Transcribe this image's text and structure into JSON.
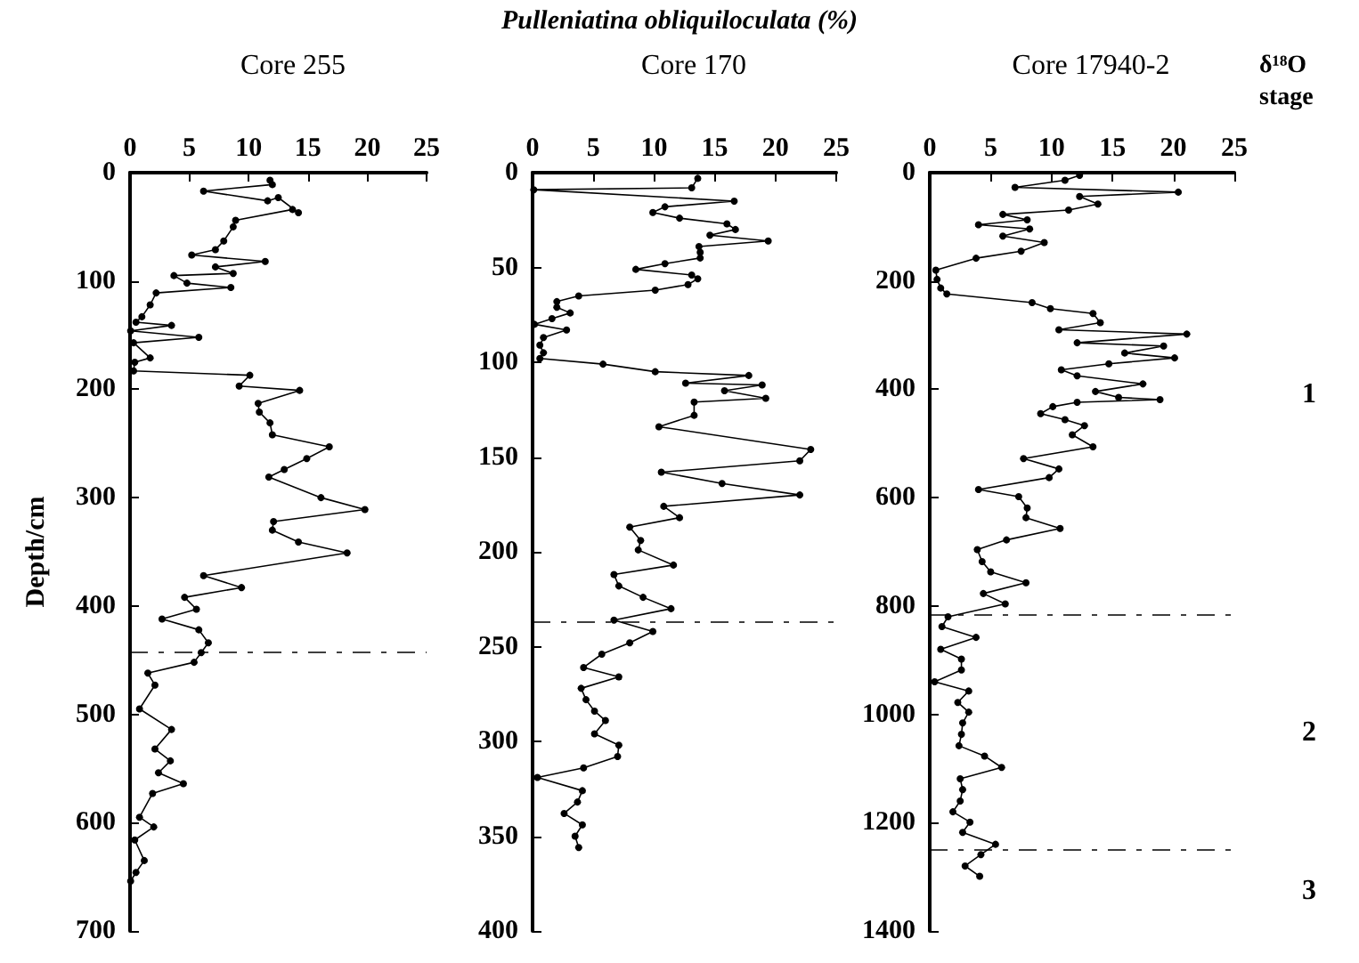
{
  "chart_data": [
    {
      "type": "line",
      "title": "Core 255",
      "ylabel": "Depth/cm",
      "annotations": [
        "Pulleniatina obliquiloculata (%)"
      ],
      "color": "#000000",
      "marker": "circle",
      "x": [
        11.8,
        12,
        6.2,
        11.6,
        12.5,
        14.2,
        13.7,
        8.9,
        8.7,
        7.9,
        7.2,
        5.2,
        11.4,
        7.2,
        8.7,
        3.7,
        4.8,
        8.5,
        2.2,
        1.7,
        1.0,
        0.5,
        3.5,
        0.05,
        5.8,
        0.3,
        1.7,
        0.4,
        0.3,
        10.1,
        9.2,
        14.3,
        10.8,
        10.9,
        11.8,
        12,
        16.8,
        14.9,
        13,
        11.7,
        16.1,
        19.8,
        12.1,
        12,
        14.2,
        18.3,
        6.2,
        9.4,
        4.6,
        5.6,
        2.7,
        5.8,
        6.6,
        6.0,
        5.4,
        1.5,
        2.1,
        0.8,
        3.5,
        2.1,
        3.4,
        2.4,
        4.5,
        1.9,
        0.8,
        2.0,
        0.4,
        1.2,
        0.5,
        0.05
      ],
      "values": [
        7,
        11,
        17,
        26,
        23,
        37,
        34,
        44,
        50,
        63,
        71,
        76,
        82,
        87,
        93,
        95,
        102,
        106,
        111,
        122,
        133,
        138,
        141,
        146,
        152,
        157,
        171,
        175,
        183,
        187,
        197,
        201,
        213,
        221,
        231,
        242,
        253,
        264,
        274,
        281,
        300,
        311,
        322,
        330,
        341,
        351,
        372,
        383,
        392,
        403,
        412,
        422,
        434,
        443,
        452,
        462,
        473,
        495,
        514,
        532,
        543,
        554,
        564,
        573,
        595,
        604,
        616,
        635,
        646,
        654
      ],
      "xlim": [
        0,
        25
      ],
      "xticks": [
        0,
        5,
        10,
        15,
        20,
        25
      ],
      "ylim": [
        700,
        0
      ],
      "yticks": [
        0,
        100,
        200,
        300,
        400,
        500,
        600,
        700
      ],
      "ref_lines": [
        {
          "axis": "y",
          "value": 442,
          "line_style": "dashed"
        }
      ]
    },
    {
      "type": "line",
      "title": "Core 170",
      "color": "#000000",
      "marker": "circle",
      "x": [
        13.6,
        13.1,
        0.1,
        16.6,
        10.9,
        9.9,
        12.1,
        16,
        16.7,
        14.6,
        19.4,
        13.7,
        13.8,
        13.8,
        10.9,
        8.5,
        13.1,
        13.6,
        12.8,
        10.1,
        3.8,
        2.0,
        2.0,
        3.1,
        1.6,
        0.15,
        2.8,
        0.9,
        0.6,
        0.9,
        0.6,
        5.8,
        10.1,
        17.8,
        12.6,
        18.9,
        15.8,
        19.2,
        13.3,
        13.3,
        10.4,
        22.9,
        22,
        10.6,
        15.6,
        22,
        10.8,
        12.1,
        8,
        8.9,
        8.7,
        11.6,
        6.7,
        7.1,
        9.1,
        11.4,
        6.7,
        9.9,
        8,
        5.7,
        4.2,
        7.1,
        4.0,
        4.4,
        5.1,
        6.0,
        5.1,
        7.1,
        7.0,
        4.2,
        0.4,
        4.1,
        3.7,
        2.6,
        4.1,
        3.5,
        3.8
      ],
      "values": [
        3,
        8,
        9,
        15,
        18,
        21,
        24,
        27,
        30,
        33,
        36,
        39,
        42,
        45,
        48,
        51,
        54,
        56,
        59,
        62,
        65,
        68,
        71,
        74,
        77,
        80,
        83,
        87,
        91,
        95,
        98,
        101,
        105,
        107,
        111,
        112,
        115,
        119,
        121,
        128,
        134,
        146,
        152,
        158,
        164,
        170,
        176,
        182,
        187,
        194,
        199,
        207,
        212,
        218,
        224,
        230,
        236,
        242,
        248,
        254,
        261,
        266,
        272,
        278,
        284,
        289,
        296,
        302,
        308,
        314,
        319,
        326,
        332,
        338,
        344,
        350,
        356
      ],
      "xlim": [
        0,
        25
      ],
      "xticks": [
        0,
        5,
        10,
        15,
        20,
        25
      ],
      "ylim": [
        400,
        0
      ],
      "yticks": [
        0,
        50,
        100,
        150,
        200,
        250,
        300,
        350,
        400
      ],
      "ref_lines": [
        {
          "axis": "y",
          "value": 237,
          "line_style": "dashed"
        }
      ]
    },
    {
      "type": "line",
      "title": "Core 17940-2",
      "annotations": [
        "δ¹⁸O stage",
        "1",
        "2",
        "3"
      ],
      "color": "#000000",
      "marker": "circle",
      "x": [
        12.3,
        11.1,
        7,
        20.4,
        12.3,
        13.8,
        11.4,
        6,
        8,
        4,
        8.2,
        6,
        9.4,
        7.5,
        3.8,
        0.5,
        0.6,
        0.9,
        1.4,
        8.4,
        9.9,
        13.4,
        14,
        10.6,
        21.1,
        12.1,
        19.2,
        16,
        20.1,
        14.7,
        10.8,
        12.1,
        17.5,
        13.6,
        15.5,
        18.9,
        12.1,
        10.1,
        9.1,
        11.1,
        12.7,
        11.7,
        13.4,
        7.7,
        10.6,
        9.8,
        4.0,
        7.3,
        8.0,
        7.9,
        10.7,
        6.3,
        3.9,
        4.3,
        5.0,
        7.9,
        4.4,
        6.2,
        1.5,
        1.0,
        3.8,
        0.9,
        2.6,
        2.6,
        0.4,
        3.2,
        2.3,
        3.2,
        2.7,
        2.6,
        2.4,
        4.5,
        5.9,
        2.5,
        2.7,
        2.5,
        1.9,
        3.3,
        2.7,
        5.4,
        4.2,
        2.9,
        4.1
      ],
      "values": [
        5,
        14,
        27,
        36,
        44,
        58,
        69,
        77,
        87,
        96,
        104,
        117,
        129,
        145,
        158,
        180,
        197,
        213,
        224,
        240,
        251,
        260,
        277,
        290,
        298,
        314,
        320,
        333,
        342,
        353,
        364,
        375,
        390,
        404,
        415,
        419,
        424,
        432,
        445,
        456,
        467,
        484,
        506,
        528,
        547,
        563,
        585,
        598,
        619,
        637,
        657,
        678,
        696,
        718,
        737,
        757,
        777,
        796,
        820,
        838,
        858,
        880,
        898,
        918,
        940,
        957,
        978,
        996,
        1016,
        1037,
        1058,
        1077,
        1098,
        1119,
        1139,
        1160,
        1180,
        1199,
        1218,
        1240,
        1259,
        1280,
        1299
      ],
      "xlim": [
        0,
        25
      ],
      "xticks": [
        0,
        5,
        10,
        15,
        20,
        25
      ],
      "ylim": [
        1400,
        0
      ],
      "yticks": [
        0,
        200,
        400,
        600,
        800,
        1000,
        1200,
        1400
      ],
      "ref_lines": [
        {
          "axis": "y",
          "value": 817,
          "line_style": "dashed"
        },
        {
          "axis": "y",
          "value": 1251,
          "line_style": "dashed"
        }
      ]
    }
  ]
}
